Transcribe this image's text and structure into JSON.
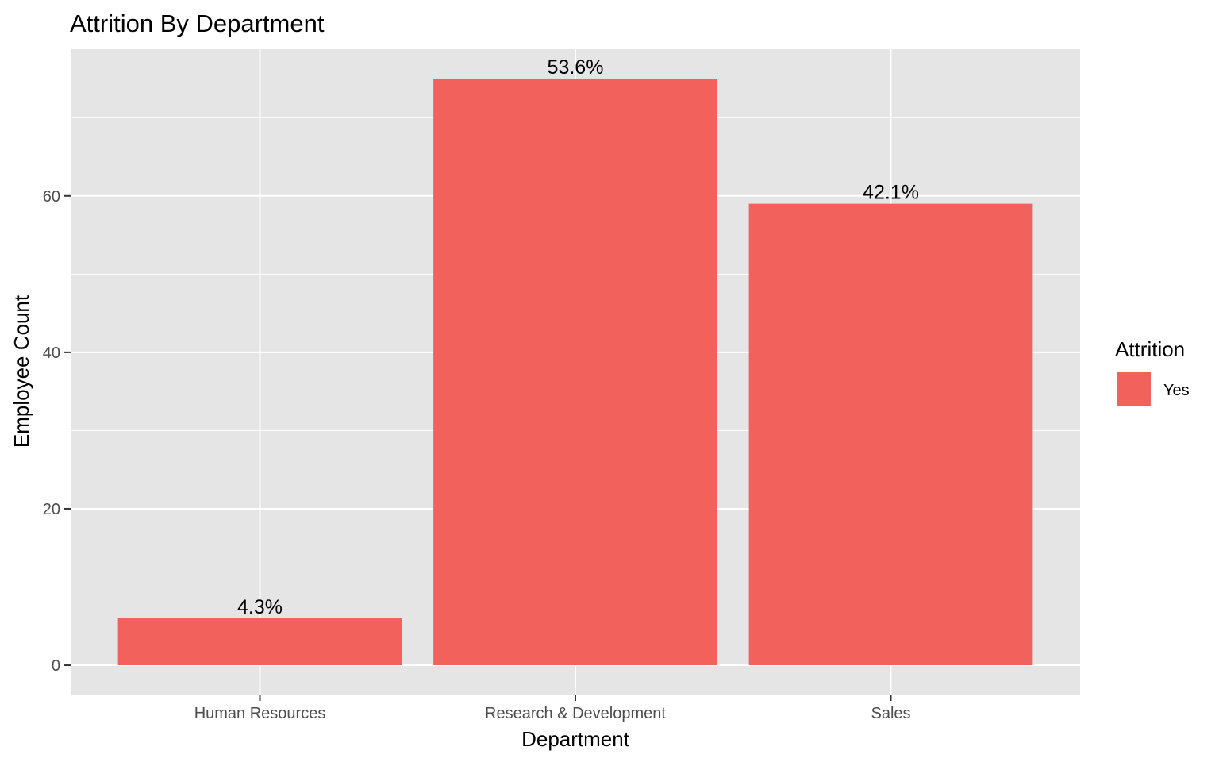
{
  "chart_data": {
    "type": "bar",
    "title": "Attrition By Department",
    "xlabel": "Department",
    "ylabel": "Employee Count",
    "categories": [
      "Human Resources",
      "Research & Development",
      "Sales"
    ],
    "series": [
      {
        "name": "Yes",
        "values": [
          6,
          75,
          59
        ],
        "labels": [
          "4.3%",
          "53.6%",
          "42.1%"
        ]
      }
    ],
    "ylim": [
      -3.75,
      78.75
    ],
    "yticks": [
      0,
      20,
      40,
      60
    ],
    "ytick_labels": [
      "0",
      "20",
      "40",
      "60"
    ],
    "yminor": [
      10,
      30,
      50,
      70
    ],
    "grid": true,
    "legend": {
      "title": "Attrition",
      "position": "right"
    },
    "colors": {
      "bar": "#F2615C",
      "panel": "#E5E5E5",
      "grid": "#FFFFFF",
      "tick_text": "#4D4D4D"
    }
  }
}
